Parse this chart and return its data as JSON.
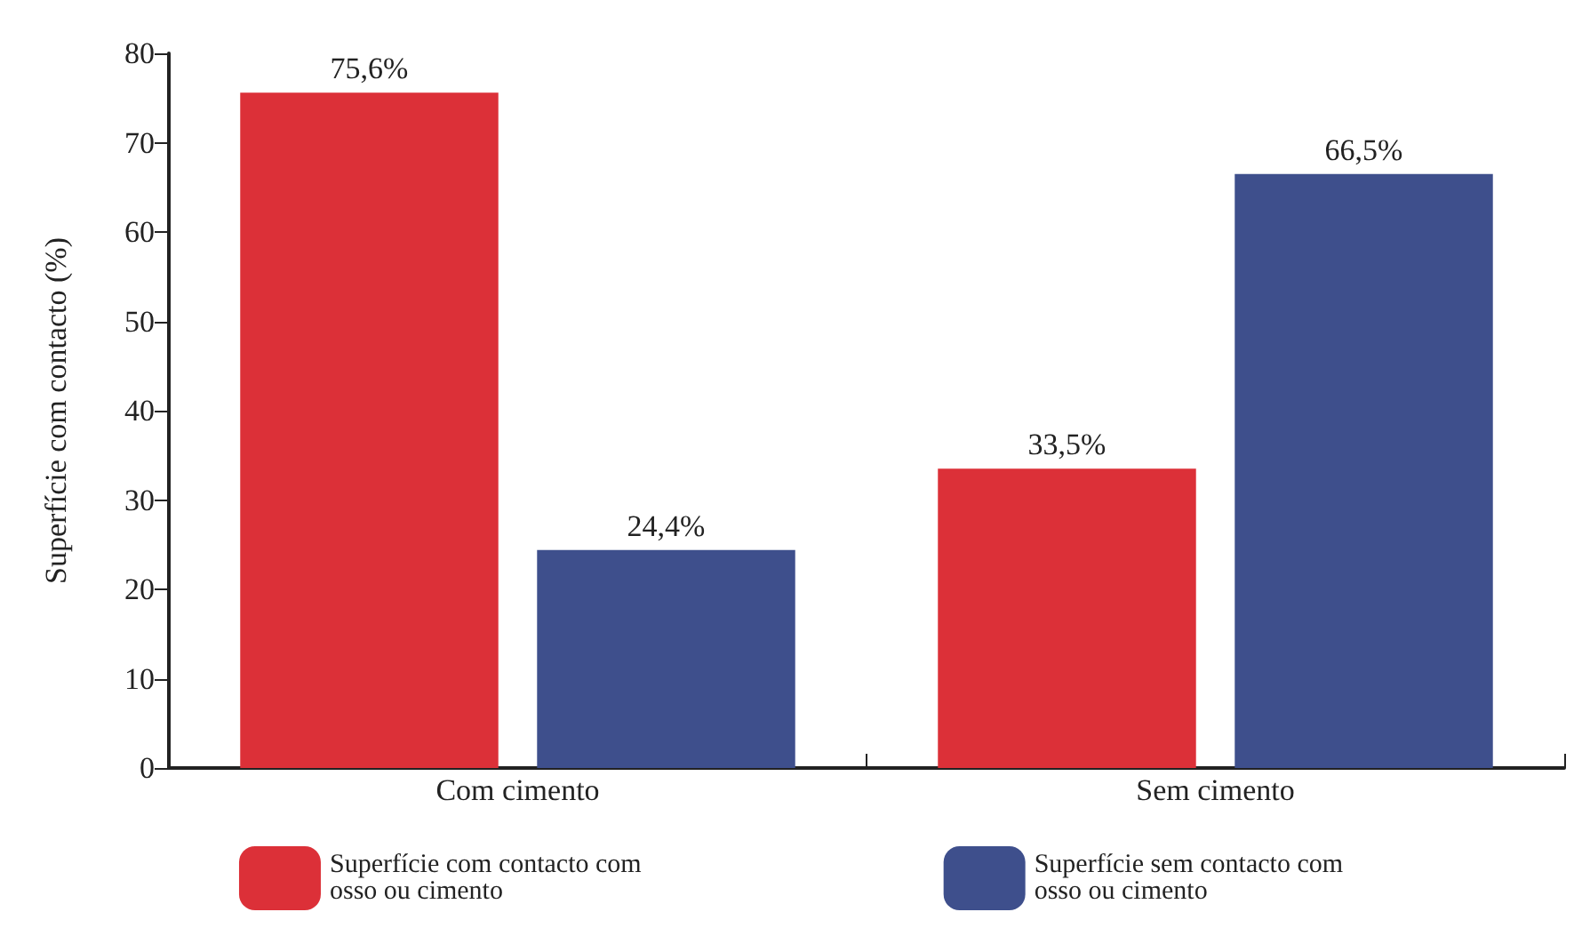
{
  "chart_data": {
    "type": "bar",
    "ylabel": "Superfície com contacto (%)",
    "categories": [
      "Com cimento",
      "Sem cimento"
    ],
    "series": [
      {
        "name": "Superfície com contacto com osso ou cimento",
        "color": "#dc3038",
        "values": [
          75.6,
          33.5
        ],
        "value_labels": [
          "75,6%",
          "33,5%"
        ]
      },
      {
        "name": "Superfície sem contacto com osso ou cimento",
        "color": "#3e4f8c",
        "values": [
          24.4,
          66.5
        ],
        "value_labels": [
          "24,4%",
          "66,5%"
        ]
      }
    ],
    "ylim": [
      0,
      80
    ],
    "yticks": [
      0,
      10,
      20,
      30,
      40,
      50,
      60,
      70,
      80
    ],
    "grid": false,
    "legend": "bottom"
  }
}
